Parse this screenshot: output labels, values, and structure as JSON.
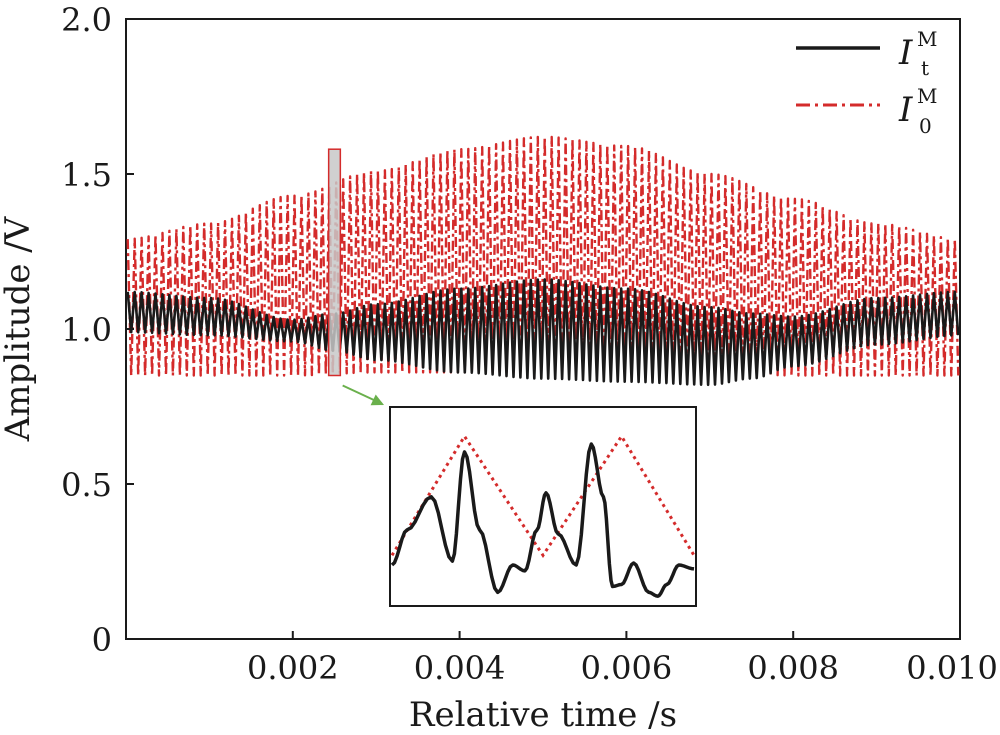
{
  "chart_data": {
    "type": "line",
    "title": "",
    "xlabel": "Relative time /s",
    "ylabel": "Amplitude /V",
    "xlim": [
      0,
      0.01
    ],
    "ylim": [
      0,
      2.0
    ],
    "x_ticks": [
      0.002,
      0.004,
      0.006,
      0.008,
      0.01
    ],
    "x_tick_labels": [
      "0.002",
      "0.004",
      "0.006",
      "0.008",
      "0.010"
    ],
    "y_ticks": [
      0,
      0.5,
      1.0,
      1.5,
      2.0
    ],
    "y_tick_labels": [
      "0",
      "0.5",
      "1.0",
      "1.5",
      "2.0"
    ],
    "grid": false,
    "legend_position": "top-right",
    "series": [
      {
        "name_symbol": "I",
        "name_sup": "M",
        "name_sub": "t",
        "color": "#1a1a1a",
        "style": "solid",
        "oscillation_count": 120,
        "envelope_upper": {
          "x": [
            0,
            0.001,
            0.002,
            0.0025,
            0.003,
            0.004,
            0.005,
            0.006,
            0.007,
            0.0075,
            0.008,
            0.009,
            0.01
          ],
          "y": [
            1.12,
            1.1,
            1.03,
            1.05,
            1.08,
            1.13,
            1.16,
            1.13,
            1.07,
            1.05,
            1.04,
            1.1,
            1.12
          ]
        },
        "envelope_lower": {
          "x": [
            0,
            0.001,
            0.002,
            0.0025,
            0.003,
            0.004,
            0.005,
            0.006,
            0.007,
            0.0075,
            0.008,
            0.009,
            0.01
          ],
          "y": [
            0.99,
            0.98,
            0.96,
            0.93,
            0.9,
            0.86,
            0.84,
            0.83,
            0.82,
            0.84,
            0.88,
            0.95,
            0.98
          ]
        }
      },
      {
        "name_symbol": "I",
        "name_sup": "M",
        "name_sub": "0",
        "color": "#d42b2b",
        "style": "dash-dot",
        "oscillation_count": 120,
        "envelope_upper": {
          "x": [
            0,
            0.001,
            0.002,
            0.003,
            0.004,
            0.005,
            0.006,
            0.007,
            0.008,
            0.009,
            0.01
          ],
          "y": [
            1.29,
            1.34,
            1.43,
            1.51,
            1.58,
            1.62,
            1.59,
            1.5,
            1.42,
            1.34,
            1.29
          ]
        },
        "envelope_lower": {
          "x": [
            0,
            0.001,
            0.002,
            0.003,
            0.004,
            0.005,
            0.006,
            0.007,
            0.008,
            0.009,
            0.01
          ],
          "y": [
            0.85,
            0.85,
            0.85,
            0.86,
            0.86,
            0.86,
            0.86,
            0.86,
            0.85,
            0.85,
            0.85
          ]
        }
      }
    ],
    "zoom_highlight": {
      "x_range": [
        0.00243,
        0.00257
      ],
      "y_range": [
        0.85,
        1.58
      ]
    },
    "inset": {
      "description": "magnified view of highlighted window",
      "series_black": {
        "x": [
          0,
          0.05,
          0.13,
          0.2,
          0.24,
          0.29,
          0.35,
          0.4,
          0.44,
          0.48,
          0.51,
          0.55,
          0.61,
          0.66,
          0.7,
          0.73,
          0.76,
          0.8,
          0.85,
          0.88,
          0.91,
          0.95,
          1.0
        ],
        "y": [
          0.2,
          0.38,
          0.55,
          0.22,
          0.78,
          0.38,
          0.06,
          0.2,
          0.17,
          0.38,
          0.57,
          0.36,
          0.2,
          0.82,
          0.55,
          0.09,
          0.1,
          0.21,
          0.06,
          0.04,
          0.1,
          0.2,
          0.18
        ]
      },
      "series_red": {
        "x": [
          0,
          0.24,
          0.5,
          0.76,
          1.0
        ],
        "y": [
          0.25,
          0.86,
          0.25,
          0.86,
          0.25
        ]
      }
    }
  }
}
